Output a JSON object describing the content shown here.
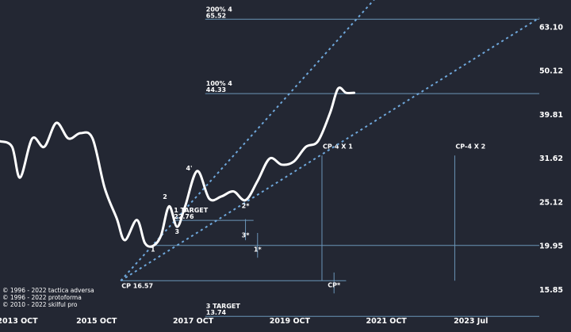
{
  "chart_data": {
    "type": "line",
    "y_scale": "log",
    "ylim": [
      14.1,
      72.5
    ],
    "x_range": [
      "2013-10",
      "2024-12"
    ],
    "grid": false,
    "x_ticks": [
      "2013 OCT",
      "2015 OCT",
      "2017 OCT",
      "2019 OCT",
      "2021 OCT",
      "2023 Jul"
    ],
    "y_ticks": [
      "15.85",
      "19.95",
      "25.12",
      "31.62",
      "39.81",
      "50.12",
      "63.10"
    ],
    "series": [
      {
        "values": [
          {
            "x": "2013-10",
            "y": 34.5
          },
          {
            "x": "2014-01",
            "y": 33.5
          },
          {
            "x": "2014-03",
            "y": 28.5
          },
          {
            "x": "2014-06",
            "y": 35.0
          },
          {
            "x": "2014-09",
            "y": 33.5
          },
          {
            "x": "2014-12",
            "y": 38.0
          },
          {
            "x": "2015-03",
            "y": 35.0
          },
          {
            "x": "2015-06",
            "y": 36.0
          },
          {
            "x": "2015-09",
            "y": 35.0
          },
          {
            "x": "2015-12",
            "y": 27.0
          },
          {
            "x": "2016-03",
            "y": 23.0
          },
          {
            "x": "2016-05",
            "y": 20.5
          },
          {
            "x": "2016-08",
            "y": 22.8
          },
          {
            "x": "2016-10",
            "y": 20.2
          },
          {
            "x": "2016-12",
            "y": 19.9
          },
          {
            "x": "2017-02",
            "y": 21.0
          },
          {
            "x": "2017-04",
            "y": 24.5
          },
          {
            "x": "2017-06",
            "y": 22.0
          },
          {
            "x": "2017-08",
            "y": 24.5
          },
          {
            "x": "2017-11",
            "y": 29.5
          },
          {
            "x": "2018-02",
            "y": 25.5
          },
          {
            "x": "2018-05",
            "y": 25.8
          },
          {
            "x": "2018-08",
            "y": 26.5
          },
          {
            "x": "2018-11",
            "y": 25.3
          },
          {
            "x": "2019-02",
            "y": 28.0
          },
          {
            "x": "2019-05",
            "y": 31.5
          },
          {
            "x": "2019-08",
            "y": 30.5
          },
          {
            "x": "2019-11",
            "y": 31.0
          },
          {
            "x": "2020-02",
            "y": 33.5
          },
          {
            "x": "2020-05",
            "y": 34.5
          },
          {
            "x": "2020-08",
            "y": 40.0
          },
          {
            "x": "2020-10",
            "y": 45.5
          },
          {
            "x": "2020-12",
            "y": 44.5
          },
          {
            "x": "2021-02",
            "y": 44.5
          }
        ]
      }
    ],
    "trendlines": [
      {
        "from": {
          "x": "2016-04",
          "y": 16.57
        },
        "to": {
          "x": "2021-10",
          "y": 78.0
        }
      },
      {
        "from": {
          "x": "2016-04",
          "y": 16.57
        },
        "to": {
          "x": "2024-12",
          "y": 66.0
        }
      }
    ],
    "levels": [
      {
        "id": "t200",
        "label": "200%  4",
        "value": "65.52",
        "y": 65.52,
        "from": "2018-01",
        "to": "2024-12"
      },
      {
        "id": "t100",
        "label": "100%  4",
        "value": "44.33",
        "y": 44.33,
        "from": "2018-01",
        "to": "2024-12"
      },
      {
        "id": "t1",
        "label": "1 TARGET",
        "value": "22.76",
        "y": 22.76,
        "from": "2017-05",
        "to": "2019-01"
      },
      {
        "id": "cp",
        "label": "CP 16.57",
        "y": 16.57,
        "from": "2016-04",
        "to": "2020-12"
      },
      {
        "id": "t3",
        "label": "3 TARGET",
        "value": "13.74",
        "y": 13.74,
        "from": "2018-01",
        "to": "2024-12"
      }
    ],
    "reference_lines": [
      {
        "x": "2020-06",
        "label": "CP-4 X 1"
      },
      {
        "x": "2023-03",
        "label": "CP-4 X 2"
      }
    ],
    "annotations": [
      {
        "text": "1",
        "x": "2016-12",
        "y": 19.3
      },
      {
        "text": "2",
        "x": "2017-03",
        "y": 25.5
      },
      {
        "text": "3",
        "x": "2017-06",
        "y": 21.2
      },
      {
        "text": "4'",
        "x": "2017-09",
        "y": 29.6
      },
      {
        "text": "2*",
        "x": "2018-11",
        "y": 24.3
      },
      {
        "text": "3*",
        "x": "2018-11",
        "y": 20.8
      },
      {
        "text": "1*",
        "x": "2019-02",
        "y": 19.3
      },
      {
        "text": "CP*",
        "x": "2020-09",
        "y": 16.0
      }
    ],
    "credits": [
      "© 1996 - 2022 tactica adversa",
      "© 1996 - 2022 protoforma",
      "© 2010 - 2022 skilful pro"
    ]
  }
}
